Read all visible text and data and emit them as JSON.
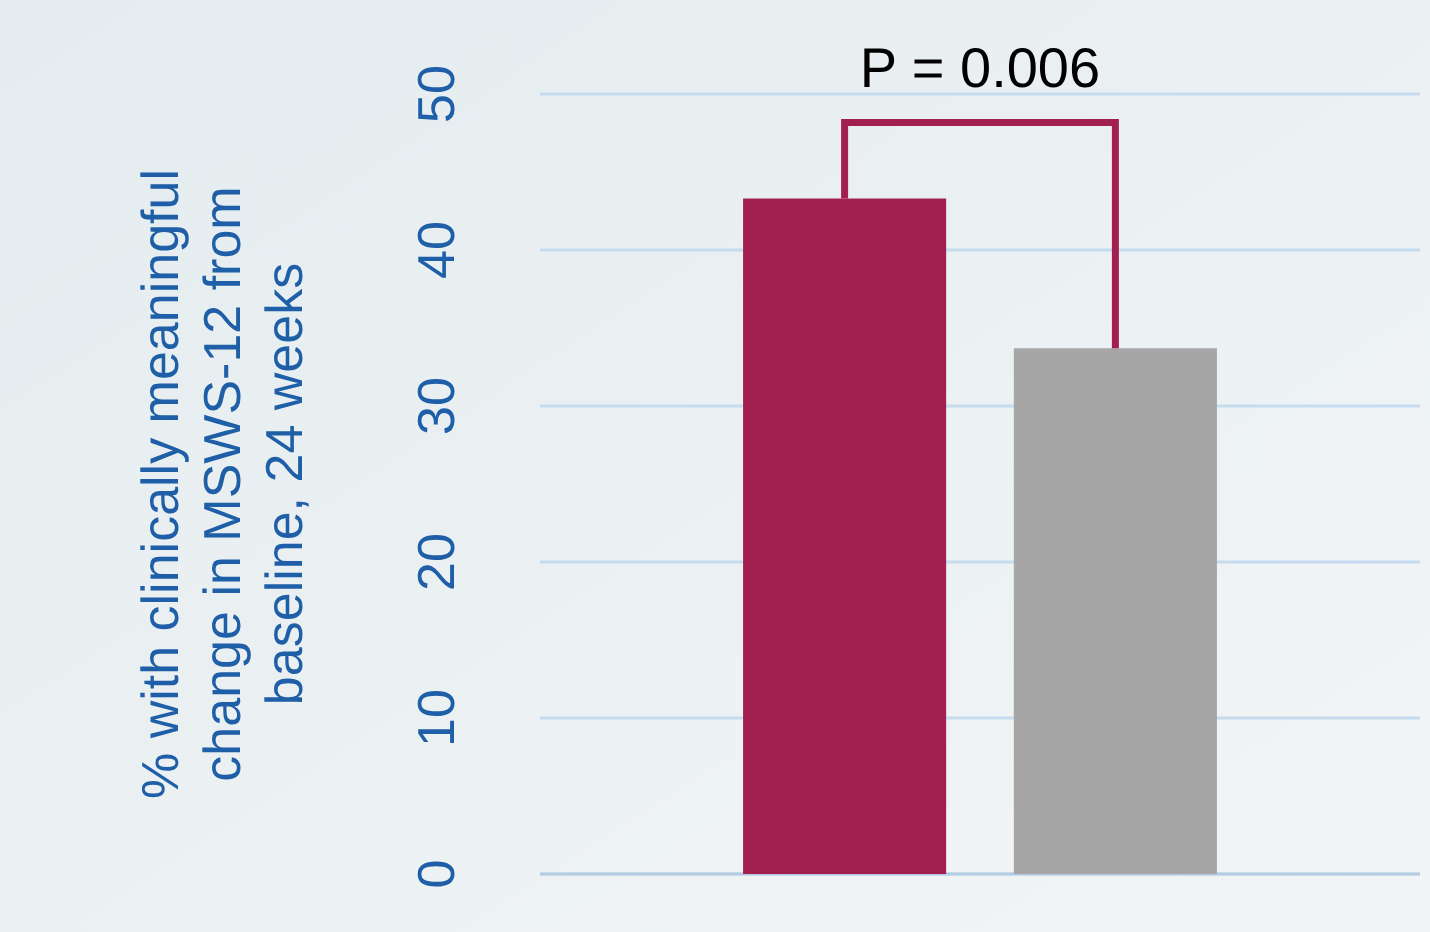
{
  "chart_data": {
    "type": "bar",
    "ylabel": "% with clinically meaningful change in MSWS-12 from baseline, 24 weeks",
    "categories": [
      null,
      null
    ],
    "values": [
      43.3,
      33.7
    ],
    "colors": [
      "#a31f4f",
      "#a6a6a6"
    ],
    "ylim": [
      0,
      50
    ],
    "yticks": [
      0,
      10,
      20,
      30,
      40,
      50
    ],
    "grid": "y",
    "annotations": [
      "P = 0.006"
    ]
  }
}
